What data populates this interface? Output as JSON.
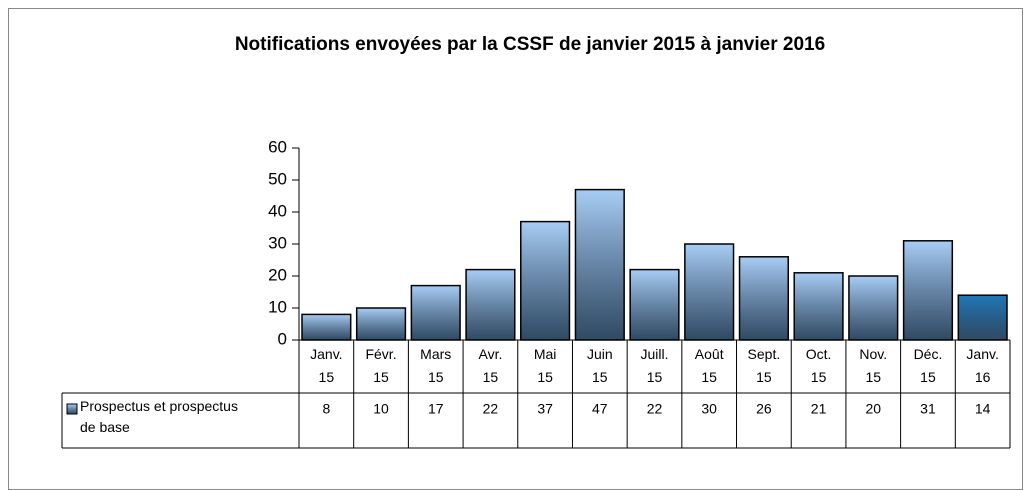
{
  "chart_data": {
    "type": "bar",
    "title": "Notifications envoyées par la CSSF de janvier 2015 à janvier 2016",
    "categories": [
      "Janv. 15",
      "Févr. 15",
      "Mars 15",
      "Avr. 15",
      "Mai 15",
      "Juin 15",
      "Juill. 15",
      "Août 15",
      "Sept. 15",
      "Oct. 15",
      "Nov. 15",
      "Déc. 15",
      "Janv. 16"
    ],
    "series": [
      {
        "name": "Prospectus et prospectus de base",
        "color": "#a8cdf5",
        "colors": [
          "#a8cdf5",
          "#a8cdf5",
          "#a8cdf5",
          "#a8cdf5",
          "#a8cdf5",
          "#a8cdf5",
          "#a8cdf5",
          "#a8cdf5",
          "#a8cdf5",
          "#a8cdf5",
          "#a8cdf5",
          "#a8cdf5",
          "#1f78b8"
        ],
        "values": [
          8,
          10,
          17,
          22,
          37,
          47,
          22,
          30,
          26,
          21,
          20,
          31,
          14
        ]
      }
    ],
    "ylim": [
      0,
      60
    ],
    "yticks": [
      0,
      10,
      20,
      30,
      40,
      50,
      60
    ],
    "data_table": true
  }
}
